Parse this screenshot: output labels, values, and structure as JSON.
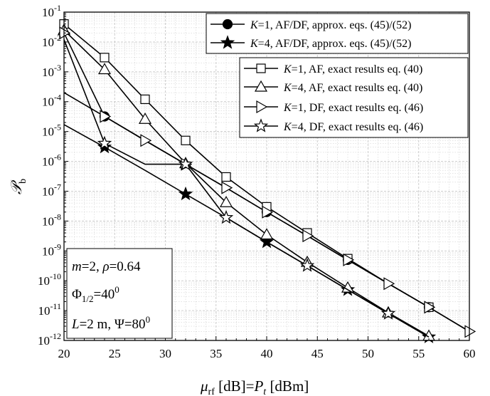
{
  "chart_data": {
    "type": "line",
    "xlabel": {
      "main": "μ",
      "main_sub": "rf",
      "mid": " [dB]=",
      "p": "P",
      "p_sub": "t",
      "end": " [dBm]"
    },
    "ylabel": {
      "main": "𝒫",
      "sub": "b"
    },
    "xlim": [
      20,
      60
    ],
    "ylim_exp": [
      -12,
      -1
    ],
    "log_y": true,
    "grid": true,
    "x_ticks": [
      "20",
      "25",
      "30",
      "35",
      "40",
      "45",
      "50",
      "55",
      "60"
    ],
    "y_ticks": [
      {
        "base": "10",
        "exp": "-1"
      },
      {
        "base": "10",
        "exp": "-2"
      },
      {
        "base": "10",
        "exp": "-3"
      },
      {
        "base": "10",
        "exp": "-4"
      },
      {
        "base": "10",
        "exp": "-5"
      },
      {
        "base": "10",
        "exp": "-6"
      },
      {
        "base": "10",
        "exp": "-7"
      },
      {
        "base": "10",
        "exp": "-8"
      },
      {
        "base": "10",
        "exp": "-9"
      },
      {
        "base": "10",
        "exp": "-10"
      },
      {
        "base": "10",
        "exp": "-11"
      },
      {
        "base": "10",
        "exp": "-12"
      }
    ],
    "series": [
      {
        "key": "k1_approx",
        "legend": {
          "k": "K",
          "rest": "=1, AF/DF, approx. eqs. (45)/(52)"
        },
        "marker": "circle-filled",
        "x": [
          20,
          24,
          28,
          32,
          36,
          40,
          44,
          48,
          52,
          56,
          60
        ],
        "y": [
          0.0002,
          3.2e-05,
          5e-06,
          8e-07,
          1.3e-07,
          2e-08,
          3.2e-09,
          5e-10,
          8e-11,
          1.3e-11,
          2e-12
        ],
        "marker_x": [
          24,
          40,
          48,
          56
        ]
      },
      {
        "key": "k4_approx",
        "legend": {
          "k": "K",
          "rest": "=4, AF/DF, approx. eqs. (45)/(52)"
        },
        "marker": "star-filled",
        "x": [
          20,
          24,
          28,
          32,
          36,
          40,
          44,
          48,
          52,
          56,
          60
        ],
        "y": [
          1.7e-05,
          3e-06,
          5e-07,
          8e-08,
          1.3e-08,
          2e-09,
          3.2e-10,
          5e-11,
          8e-12,
          1.3e-12,
          2e-13
        ],
        "marker_x": [
          24,
          32,
          40,
          48,
          56
        ]
      },
      {
        "key": "k1_af_exact",
        "legend": {
          "k": "K",
          "rest": "=1, AF, exact results eq. (40)"
        },
        "marker": "square-open",
        "x": [
          20,
          24,
          28,
          32,
          36,
          40,
          44,
          48,
          52,
          56
        ],
        "y": [
          0.04,
          0.003,
          0.00012,
          5e-06,
          3e-07,
          3e-08,
          4e-09,
          5.5e-10,
          8e-11,
          1.3e-11
        ],
        "marker_x": [
          20,
          24,
          28,
          32,
          36,
          40,
          44,
          48,
          56
        ]
      },
      {
        "key": "k4_af_exact",
        "legend": {
          "k": "K",
          "rest": "=4, AF, exact results eq. (40)"
        },
        "marker": "triangle-up-open",
        "x": [
          20,
          24,
          28,
          32,
          36,
          40,
          44,
          48,
          52,
          56
        ],
        "y": [
          0.025,
          0.0012,
          2.6e-05,
          8.5e-07,
          4.2e-08,
          3.5e-09,
          4.2e-10,
          5.8e-11,
          8.5e-12,
          1.4e-12
        ],
        "marker_x": [
          20,
          24,
          28,
          32,
          36,
          40,
          44,
          48,
          52,
          56
        ]
      },
      {
        "key": "k1_df_exact",
        "legend": {
          "k": "K",
          "rest": "=1, DF, exact results eq. (46)"
        },
        "marker": "triangle-right-open",
        "x": [
          20,
          24,
          28,
          32,
          36,
          40,
          44,
          48,
          52,
          56,
          60
        ],
        "y": [
          0.02,
          3.2e-05,
          5e-06,
          8e-07,
          1.3e-07,
          2e-08,
          3.2e-09,
          5e-10,
          8e-11,
          1.3e-11,
          2e-12
        ],
        "marker_x": [
          20,
          24,
          28,
          32,
          36,
          40,
          44,
          48,
          52,
          56,
          60
        ]
      },
      {
        "key": "k4_df_exact",
        "legend": {
          "k": "K",
          "rest": "=4, DF, exact results eq. (46)"
        },
        "marker": "star-open",
        "x": [
          20,
          24,
          28,
          32,
          36,
          40,
          44,
          48,
          52,
          56
        ],
        "y": [
          0.012,
          4e-06,
          8e-07,
          8e-07,
          1.3e-08,
          2e-09,
          3.2e-10,
          5e-11,
          8e-12,
          1.3e-12
        ],
        "marker_x": [
          24,
          32,
          36,
          44,
          52
        ]
      }
    ],
    "annotation": {
      "line1": {
        "m": "m",
        "m_val": "=2, ",
        "rho": "ρ",
        "rho_val": "=0.64"
      },
      "line2": {
        "phi": "Φ",
        "phi_sub": "1/2",
        "phi_val": "=40",
        "phi_sup": "0"
      },
      "line3": {
        "l": "L",
        "l_val": "=2 m, Ψ=80",
        "psi_sup": "0"
      }
    },
    "colors": {
      "line": "#000000",
      "grid": "#c8c8c8",
      "background": "#ffffff"
    }
  }
}
